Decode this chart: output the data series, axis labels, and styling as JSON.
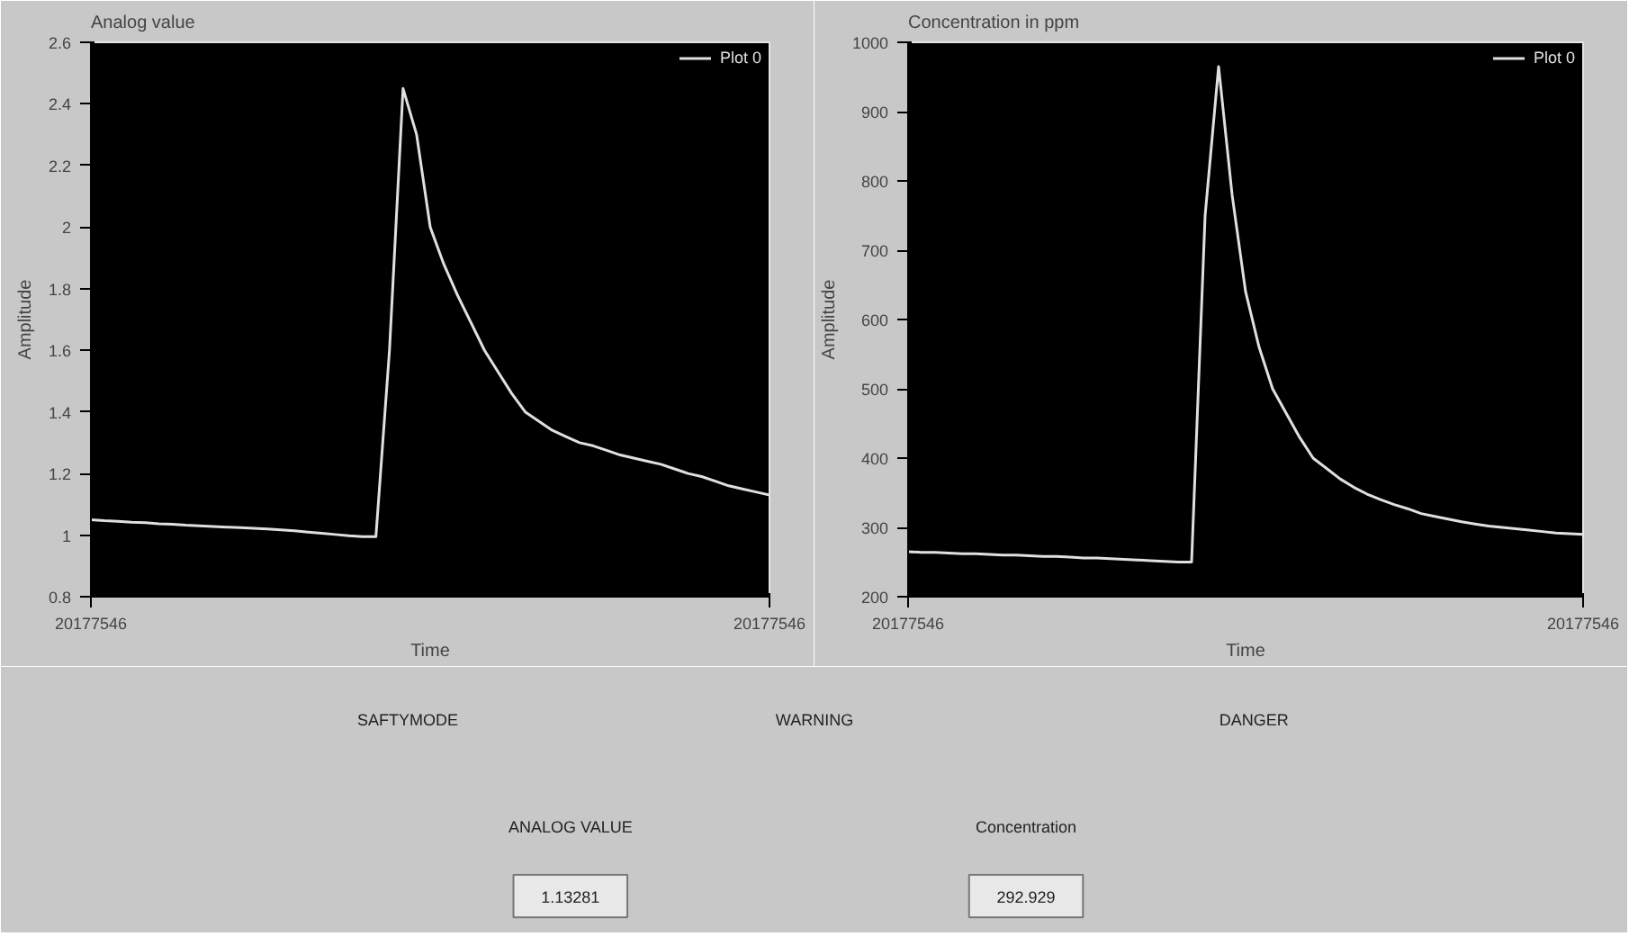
{
  "chart_data": [
    {
      "type": "line",
      "title": "Analog value",
      "xlabel": "Time",
      "ylabel": "Amplitude",
      "categories": [
        null,
        null,
        null,
        null,
        null,
        null,
        null,
        null,
        null,
        null,
        null,
        null,
        null,
        null,
        null,
        null,
        null,
        null,
        null,
        null,
        null,
        null,
        null,
        null,
        null,
        null,
        null,
        null,
        null,
        null,
        null,
        null,
        null,
        null,
        null,
        null,
        null,
        null,
        null,
        null,
        null,
        null,
        null,
        null,
        null,
        null,
        null,
        null,
        null,
        null,
        null
      ],
      "ylim": [
        0.8,
        2.6
      ],
      "yticks": [
        0.8,
        1,
        1.2,
        1.4,
        1.6,
        1.8,
        2,
        2.2,
        2.4,
        2.6
      ],
      "legend": "top right",
      "line_style": "solid",
      "annotations": [
        "20177546",
        "20177546"
      ],
      "series": [
        {
          "name": "Plot 0",
          "color": "#e0e0e0",
          "values": [
            1.05,
            1.047,
            1.045,
            1.042,
            1.04,
            1.037,
            1.035,
            1.032,
            1.03,
            1.028,
            1.026,
            1.024,
            1.022,
            1.02,
            1.017,
            1.014,
            1.01,
            1.006,
            1.002,
            0.998,
            0.995,
            0.995,
            1.6,
            2.45,
            2.3,
            2.0,
            1.88,
            1.78,
            1.69,
            1.6,
            1.53,
            1.46,
            1.4,
            1.37,
            1.34,
            1.32,
            1.3,
            1.29,
            1.275,
            1.26,
            1.25,
            1.24,
            1.23,
            1.215,
            1.2,
            1.19,
            1.175,
            1.16,
            1.15,
            1.14,
            1.13
          ]
        }
      ]
    },
    {
      "type": "line",
      "title": "Concentration in ppm",
      "xlabel": "Time",
      "ylabel": "Amplitude",
      "categories": [
        null,
        null,
        null,
        null,
        null,
        null,
        null,
        null,
        null,
        null,
        null,
        null,
        null,
        null,
        null,
        null,
        null,
        null,
        null,
        null,
        null,
        null,
        null,
        null,
        null,
        null,
        null,
        null,
        null,
        null,
        null,
        null,
        null,
        null,
        null,
        null,
        null,
        null,
        null,
        null,
        null,
        null,
        null,
        null,
        null,
        null,
        null,
        null,
        null,
        null,
        null
      ],
      "ylim": [
        200,
        1000
      ],
      "yticks": [
        200,
        300,
        400,
        500,
        600,
        700,
        800,
        900,
        1000
      ],
      "legend": "top right",
      "line_style": "solid",
      "annotations": [
        "20177546",
        "20177546"
      ],
      "series": [
        {
          "name": "Plot 0",
          "color": "#e0e0e0",
          "values": [
            265,
            264,
            264,
            263,
            262,
            262,
            261,
            260,
            260,
            259,
            258,
            258,
            257,
            256,
            256,
            255,
            254,
            253,
            252,
            251,
            250,
            250,
            750,
            965,
            780,
            640,
            560,
            500,
            465,
            430,
            400,
            385,
            370,
            358,
            348,
            340,
            333,
            327,
            320,
            316,
            312,
            308,
            305,
            302,
            300,
            298,
            296,
            294,
            292,
            291,
            290
          ]
        }
      ]
    },
    {
      "type": "other",
      "annotations": [
        "SAFTYMODE",
        "WARNING",
        "DANGER",
        "ANALOG VALUE",
        "1.13281",
        "Concentration",
        "292.929"
      ]
    }
  ]
}
